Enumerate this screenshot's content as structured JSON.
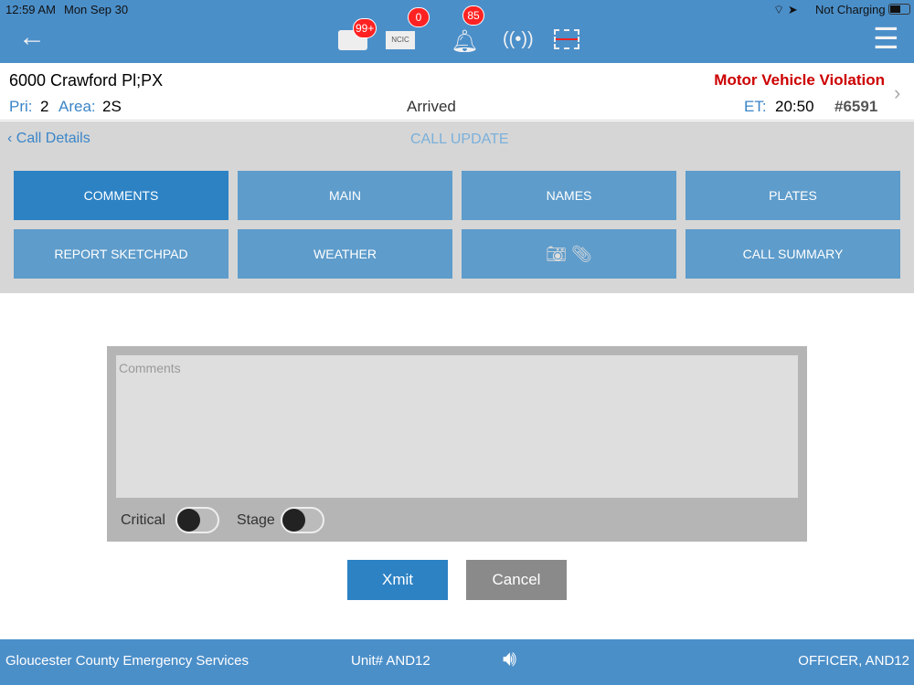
{
  "status": {
    "time": "12:59 AM",
    "date": "Mon Sep 30",
    "battery": "Not Charging"
  },
  "toolbar": {
    "mail_badge": "99+",
    "ncic_label": "NCIC",
    "ncic_badge": "0",
    "bell_badge": "85"
  },
  "call": {
    "address": "6000 Crawford Pl;PX",
    "type": "Motor Vehicle Violation",
    "pri_label": "Pri:",
    "pri": "2",
    "area_label": "Area:",
    "area": "2S",
    "status": "Arrived",
    "et_label": "ET:",
    "et": "20:50",
    "number": "#6591"
  },
  "nav": {
    "back": "Call Details",
    "title": "CALL UPDATE"
  },
  "tabs": [
    "COMMENTS",
    "MAIN",
    "NAMES",
    "PLATES",
    "REPORT SKETCHPAD",
    "WEATHER",
    "",
    "CALL SUMMARY"
  ],
  "form": {
    "placeholder": "Comments",
    "critical": "Critical",
    "stage": "Stage",
    "critical_on": false,
    "stage_on": false,
    "xmit": "Xmit",
    "cancel": "Cancel"
  },
  "footer": {
    "agency": "Gloucester County Emergency Services",
    "unit": "Unit# AND12",
    "officer": "OFFICER, AND12"
  },
  "colors": {
    "header": "#4b8fc9",
    "accent": "#2d82c4",
    "alert": "#cc0000",
    "badge": "#ff2222"
  }
}
